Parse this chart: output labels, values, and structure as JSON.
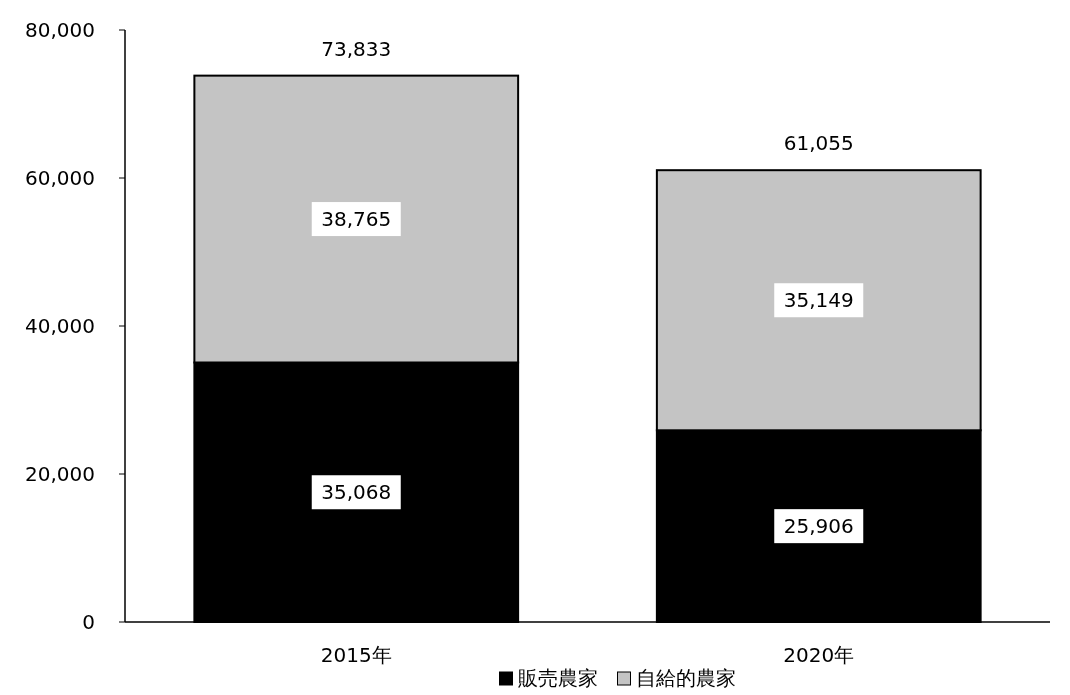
{
  "chart_data": {
    "type": "bar",
    "stacked": true,
    "categories": [
      "2015年",
      "2020年"
    ],
    "series": [
      {
        "name": "販売農家",
        "color": "#000000",
        "values": [
          35068,
          25906
        ],
        "value_labels": [
          "35,068",
          "25,906"
        ]
      },
      {
        "name": "自給的農家",
        "color": "#c4c4c4",
        "values": [
          38765,
          35149
        ],
        "value_labels": [
          "38,765",
          "35,149"
        ]
      }
    ],
    "totals": [
      "73,833",
      "61,055"
    ],
    "ylim": [
      0,
      80000
    ],
    "yticks": [
      0,
      {
        "value": 20000,
        "label": "20,000"
      },
      {
        "value": 40000,
        "label": "40,000"
      },
      {
        "value": 60000,
        "label": "60,000"
      },
      {
        "value": 80000,
        "label": "80,000"
      }
    ],
    "grid": false,
    "legend": "bottom"
  }
}
